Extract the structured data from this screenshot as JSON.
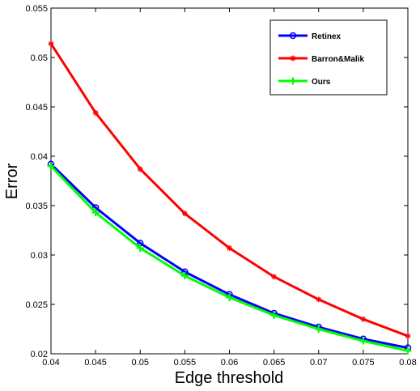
{
  "chart_data": {
    "type": "line",
    "xlabel": "Edge threshold",
    "ylabel": "Error",
    "xlim": [
      0.04,
      0.08
    ],
    "ylim": [
      0.02,
      0.055
    ],
    "x": [
      0.04,
      0.045,
      0.05,
      0.055,
      0.06,
      0.065,
      0.07,
      0.075,
      0.08
    ],
    "x_ticks": [
      "0.04",
      "0.045",
      "0.05",
      "0.055",
      "0.06",
      "0.065",
      "0.07",
      "0.075",
      "0.08"
    ],
    "y_ticks": [
      "0.02",
      "0.025",
      "0.03",
      "0.035",
      "0.04",
      "0.045",
      "0.05",
      "0.055"
    ],
    "grid": false,
    "legend_position": "top-right",
    "series": [
      {
        "name": "Retinex",
        "color": "#0000ff",
        "marker": "circle",
        "values": [
          0.0392,
          0.0348,
          0.0312,
          0.0283,
          0.026,
          0.0241,
          0.0227,
          0.0215,
          0.0206
        ]
      },
      {
        "name": "Barron&Malik",
        "color": "#ff0000",
        "marker": "star",
        "values": [
          0.0514,
          0.0444,
          0.0387,
          0.0342,
          0.0307,
          0.0278,
          0.0255,
          0.0235,
          0.0218
        ]
      },
      {
        "name": "Ours",
        "color": "#00ff00",
        "marker": "plus",
        "values": [
          0.039,
          0.0343,
          0.0307,
          0.0279,
          0.0257,
          0.0239,
          0.0225,
          0.0213,
          0.0203
        ]
      }
    ]
  }
}
